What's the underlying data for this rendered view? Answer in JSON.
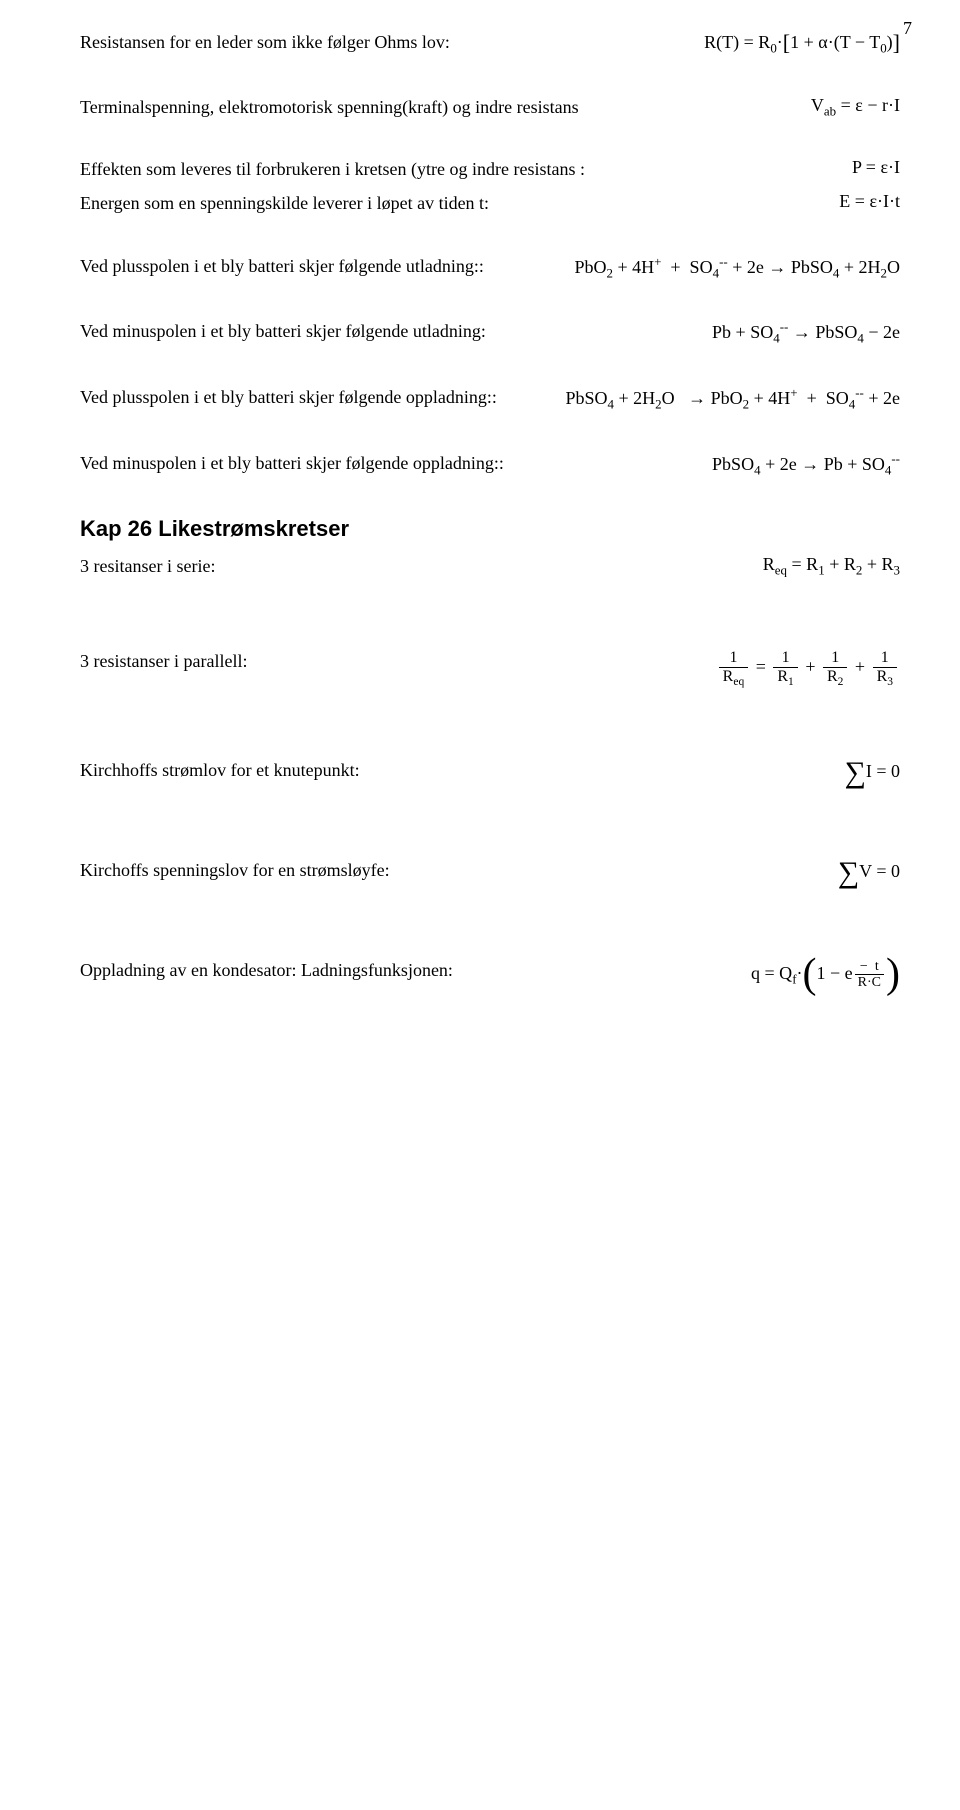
{
  "page_number": "7",
  "items": [
    {
      "left": "Resistansen for en leder som ikke følger Ohms lov:",
      "rhtml": "R(T) = R<sub>0</sub>·<span class='sq-l'>[</span>1 + α·(T − T<sub>0</sub>)<span class='sq-r'>]</span>"
    },
    {
      "left": "Terminalspenning, elektromotorisk spenning(kraft) og indre resistans",
      "rhtml": "V<sub>ab</sub> = ε − r·I"
    },
    {
      "left": "Effekten som leveres til forbrukeren i kretsen (ytre og indre resistans :",
      "tight": true,
      "rhtml": "P = ε·I"
    },
    {
      "left": "Energen som en spenningskilde leverer i løpet av tiden t:",
      "rhtml": "E = ε·I·t"
    },
    {
      "left": "Ved plusspolen i et bly batteri skjer følgende utladning::",
      "rhtml": "PbO<sub>2</sub> + 4H<sup>+</sup> &nbsp;+&nbsp; SO<sub>4</sub><sup>--</sup> + 2e → PbSO<sub>4</sub> + 2H<sub>2</sub>O"
    },
    {
      "left": "Ved minuspolen i et bly batteri skjer følgende utladning:",
      "rhtml": "Pb + SO<sub>4</sub><sup>--</sup> → PbSO<sub>4</sub> − 2e"
    },
    {
      "left": "Ved plusspolen i et bly batteri skjer følgende oppladning::",
      "rhtml": "PbSO<sub>4</sub> + 2H<sub>2</sub>O &nbsp; → PbO<sub>2</sub> + 4H<sup>+</sup> &nbsp;+&nbsp; SO<sub>4</sub><sup>--</sup> + 2e"
    },
    {
      "left": "Ved minuspolen i et bly batteri skjer følgende oppladning::",
      "rhtml": "PbSO<sub>4</sub> + 2e → Pb + SO<sub>4</sub><sup>--</sup>"
    }
  ],
  "section_title": "Kap 26 Likestrømskretser",
  "items2": [
    {
      "left": "3 resitanser i serie:",
      "wide": true,
      "rhtml": "R<sub>eq</sub> = R<sub>1</sub> + R<sub>2</sub> + R<sub>3</sub>"
    },
    {
      "left": "3 resistanser i parallell:",
      "wide": true,
      "rhtml": "<span class='frac'><span class='num'>1</span><span class='den'>R<sub>eq</sub></span></span> = <span class='frac'><span class='num'>1</span><span class='den'>R<sub>1</sub></span></span> + <span class='frac'><span class='num'>1</span><span class='den'>R<sub>2</sub></span></span> + <span class='frac'><span class='num'>1</span><span class='den'>R<sub>3</sub></span></span>"
    },
    {
      "left": "Kirchhoffs strømlov for et knutepunkt:",
      "wide": true,
      "rhtml": "<span class='bigsum'>∑</span>I = 0"
    },
    {
      "left": "Kirchoffs spenningslov for en strømsløyfe:",
      "wide": true,
      "rhtml": "<span class='bigsum'>∑</span>V = 0"
    },
    {
      "left": "Oppladning av en kondesator: Ladningsfunksjonen:",
      "rhtml": "q = Q<sub>f</sub>·<span class='paren-big'>(</span>1 − e<span class='exp-stack'><span class='top'>−&nbsp;&nbsp;t</span><span class='mid'>R·C</span></span><span class='paren-big'>)</span>"
    }
  ]
}
